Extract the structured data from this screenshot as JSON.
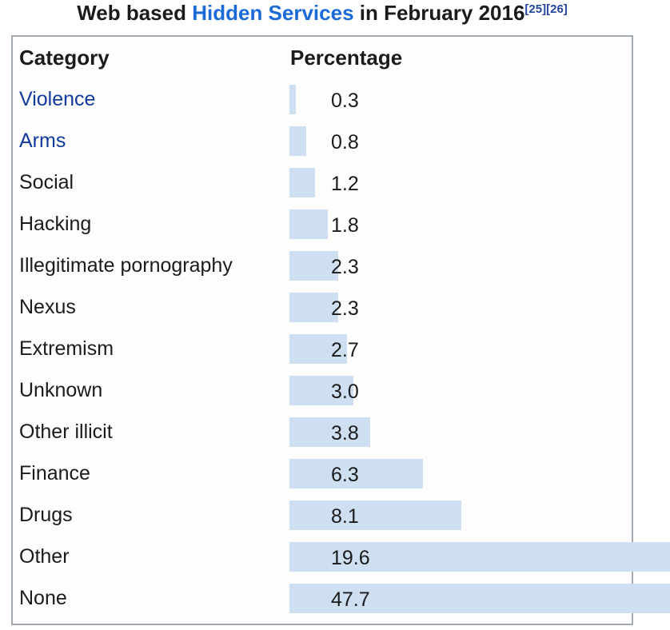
{
  "title": {
    "prefix": "Web based ",
    "link_text": "Hidden Services",
    "suffix": " in February 2016",
    "refs": [
      "[25]",
      "[26]"
    ]
  },
  "table": {
    "headers": {
      "category": "Category",
      "percentage": "Percentage"
    },
    "rows": [
      {
        "category": "Violence",
        "value": "0.3",
        "link": true
      },
      {
        "category": "Arms",
        "value": "0.8",
        "link": true
      },
      {
        "category": "Social",
        "value": "1.2",
        "link": false
      },
      {
        "category": "Hacking",
        "value": "1.8",
        "link": false
      },
      {
        "category": "Illegitimate pornography",
        "value": "2.3",
        "link": false
      },
      {
        "category": "Nexus",
        "value": "2.3",
        "link": false
      },
      {
        "category": "Extremism",
        "value": "2.7",
        "link": false
      },
      {
        "category": "Unknown",
        "value": "3.0",
        "link": false
      },
      {
        "category": "Other illicit",
        "value": "3.8",
        "link": false
      },
      {
        "category": "Finance",
        "value": "6.3",
        "link": false
      },
      {
        "category": "Drugs",
        "value": "8.1",
        "link": false
      },
      {
        "category": "Other",
        "value": "19.6",
        "link": false
      },
      {
        "category": "None",
        "value": "47.7",
        "link": false
      }
    ]
  },
  "colors": {
    "bar": "#cedff2",
    "border": "#a2a9b1",
    "text": "#1b1b1b",
    "title_link": "#1b6ad8",
    "category_link": "#123a9d",
    "ref": "#26479f"
  },
  "chart_data": {
    "type": "bar",
    "orientation": "horizontal",
    "title": "Web based Hidden Services in February 2016",
    "references": [
      "[25]",
      "[26]"
    ],
    "xlabel": "Percentage",
    "ylabel": "Category",
    "categories": [
      "Violence",
      "Arms",
      "Social",
      "Hacking",
      "Illegitimate pornography",
      "Nexus",
      "Extremism",
      "Unknown",
      "Other illicit",
      "Finance",
      "Drugs",
      "Other",
      "None"
    ],
    "values": [
      0.3,
      0.8,
      1.2,
      1.8,
      2.3,
      2.3,
      2.7,
      3.0,
      3.8,
      6.3,
      8.1,
      19.6,
      47.7
    ],
    "value_labels": [
      "0.3",
      "0.8",
      "1.2",
      "1.8",
      "2.3",
      "2.3",
      "2.7",
      "3.0",
      "3.8",
      "6.3",
      "8.1",
      "19.6",
      "47.7"
    ],
    "bar_color": "#cedff2",
    "grid": false,
    "legend": false,
    "note": "bars for Other and None overflow the table frame and are clipped at the image edge"
  }
}
